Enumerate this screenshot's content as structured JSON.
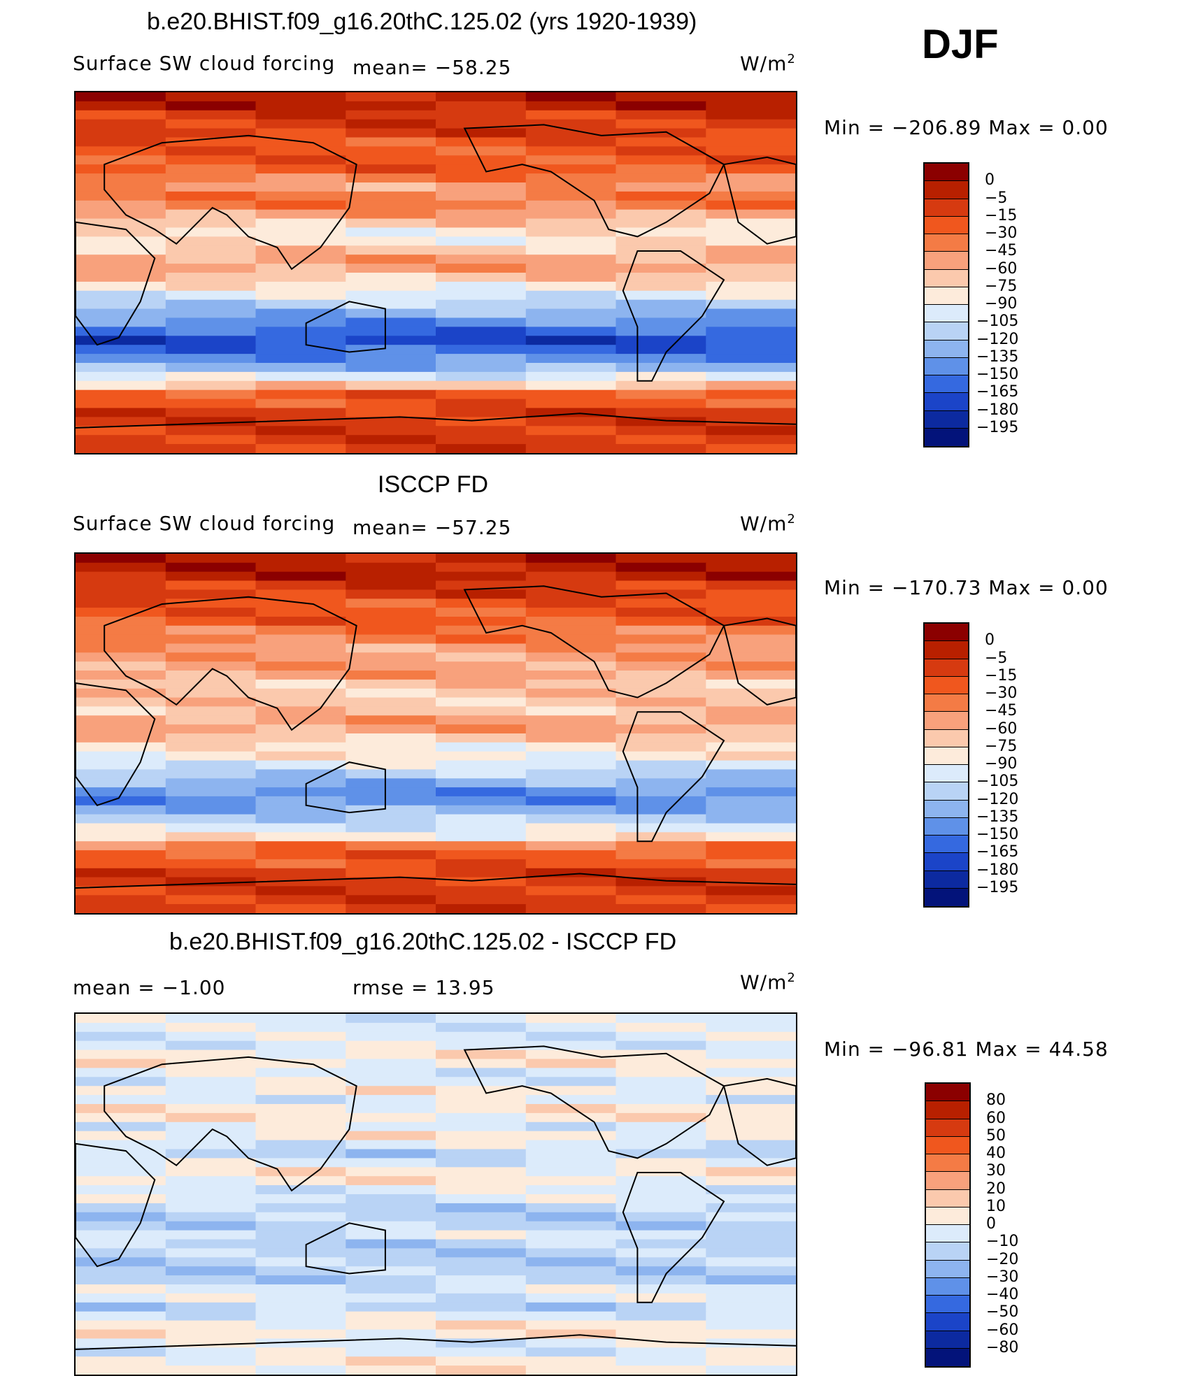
{
  "season": "DJF",
  "panels": [
    {
      "title": "b.e20.BHIST.f09_g16.20thC.125.02 (yrs 1920-1939)",
      "left_label": "Surface SW cloud forcing",
      "mean_label": "mean=  −58.25",
      "units": "W/m",
      "units_sup": "2",
      "minmax": "Min  =  −206.89  Max  =      0.00",
      "colorbar_labels": [
        "0",
        "−5",
        "−15",
        "−30",
        "−45",
        "−60",
        "−75",
        "−90",
        "−105",
        "−120",
        "−135",
        "−150",
        "−165",
        "−180",
        "−195"
      ],
      "field": "model"
    },
    {
      "title": "ISCCP FD",
      "left_label": "Surface SW cloud forcing",
      "mean_label": "mean=  −57.25",
      "units": "W/m",
      "units_sup": "2",
      "minmax": "Min  =  −170.73  Max  =      0.00",
      "colorbar_labels": [
        "0",
        "−5",
        "−15",
        "−30",
        "−45",
        "−60",
        "−75",
        "−90",
        "−105",
        "−120",
        "−135",
        "−150",
        "−165",
        "−180",
        "−195"
      ],
      "field": "obs"
    },
    {
      "title": "b.e20.BHIST.f09_g16.20thC.125.02 - ISCCP FD",
      "left_label": "mean  =    −1.00",
      "mean_label": "rmse  =    13.95",
      "units": "W/m",
      "units_sup": "2",
      "minmax": "Min  =  −96.81  Max  =    44.58",
      "colorbar_labels": [
        "80",
        "60",
        "50",
        "40",
        "30",
        "20",
        "10",
        "0",
        "−10",
        "−20",
        "−30",
        "−40",
        "−50",
        "−60",
        "−80"
      ],
      "field": "diff"
    }
  ],
  "colors": {
    "palette": [
      "#8b0000",
      "#b82000",
      "#d63a10",
      "#f0571e",
      "#f47b45",
      "#f8a17c",
      "#fbc9ad",
      "#fdebdb",
      "#dcebfb",
      "#b9d3f5",
      "#8db4ef",
      "#5f91e8",
      "#3569e0",
      "#1b44c8",
      "#0c2aa0",
      "#03137a"
    ]
  }
}
